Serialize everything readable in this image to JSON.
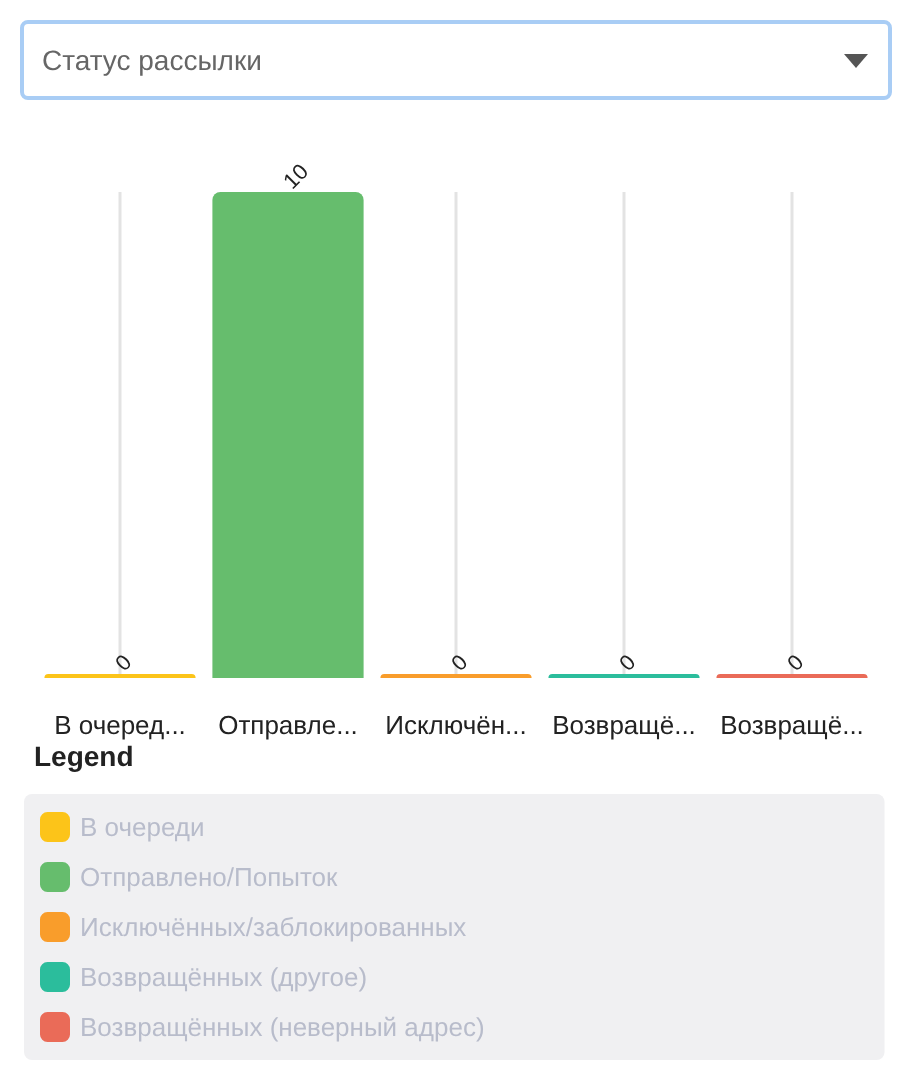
{
  "chart_data": {
    "type": "bar",
    "title": "Статус рассылки",
    "legend_title": "Legend",
    "categories": [
      "В очеред...",
      "Отправле...",
      "Исключён...",
      "Возвращё...",
      "Возвращё..."
    ],
    "series": [
      {
        "name": "В очереди",
        "color": "#fcc419",
        "values": [
          0,
          null,
          null,
          null,
          null
        ]
      },
      {
        "name": "Отправлено/Попыток",
        "color": "#66bd6d",
        "values": [
          null,
          10,
          null,
          null,
          null
        ]
      },
      {
        "name": "Исключённых/заблокированных",
        "color": "#f99d2b",
        "values": [
          null,
          null,
          0,
          null,
          null
        ]
      },
      {
        "name": "Возвращённых (другое)",
        "color": "#2bbd9c",
        "values": [
          null,
          null,
          null,
          0,
          null
        ]
      },
      {
        "name": "Возвращённых (неверный адрес)",
        "color": "#ea6b58",
        "values": [
          null,
          null,
          null,
          null,
          0
        ]
      }
    ],
    "data_labels": true,
    "grid": "x",
    "legend": "bottom"
  }
}
